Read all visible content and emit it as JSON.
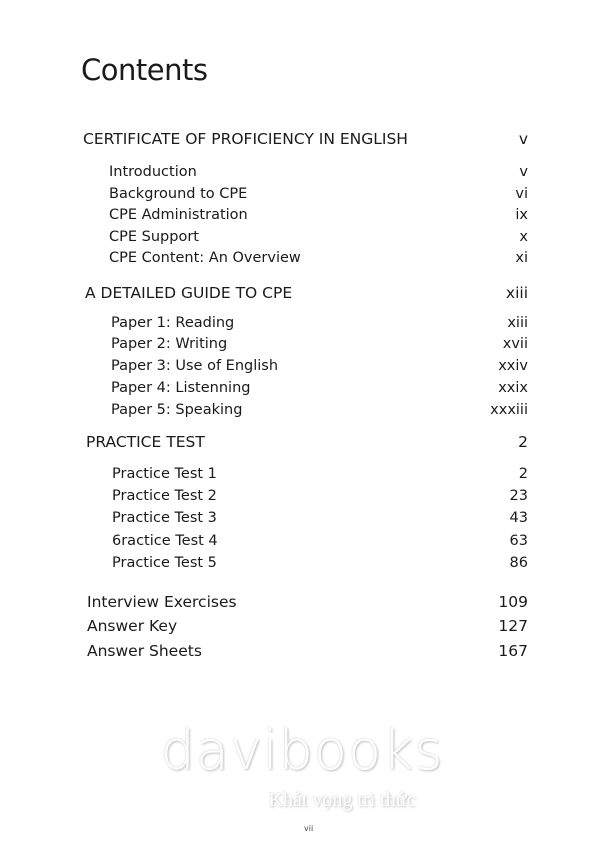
{
  "title": "Contents",
  "sections": [
    {
      "label": "CERTIFICATE OF PROFICIENCY IN ENGLISH",
      "page": "v",
      "items": [
        {
          "label": "Introduction",
          "page": "v"
        },
        {
          "label": "Background to CPE",
          "page": "vi"
        },
        {
          "label": "CPE Administration",
          "page": "ix"
        },
        {
          "label": "CPE Support",
          "page": "x"
        },
        {
          "label": "CPE Content: An Overview",
          "page": "xi"
        }
      ]
    },
    {
      "label": "A DETAILED GUIDE TO CPE",
      "page": "xiii",
      "items": [
        {
          "label": "Paper 1: Reading",
          "page": "xiii"
        },
        {
          "label": "Paper 2: Writing",
          "page": "xvii"
        },
        {
          "label": "Paper 3: Use of English",
          "page": "xxiv"
        },
        {
          "label": "Paper 4: Listenning",
          "page": "xxix"
        },
        {
          "label": "Paper 5: Speaking",
          "page": "xxxiii"
        }
      ]
    },
    {
      "label": "PRACTICE TEST",
      "page": "2",
      "items": [
        {
          "label": "Practice Test 1",
          "page": "2"
        },
        {
          "label": "Practice Test 2",
          "page": "23"
        },
        {
          "label": "Practice Test 3",
          "page": "43"
        },
        {
          "label": "6ractice Test 4",
          "page": "63"
        },
        {
          "label": "Practice Test 5",
          "page": "86"
        }
      ]
    }
  ],
  "top_entries": [
    {
      "label": "Interview Exercises",
      "page": "109"
    },
    {
      "label": "Answer Key",
      "page": "127"
    },
    {
      "label": "Answer Sheets",
      "page": "167"
    }
  ],
  "page_number": "vii",
  "watermark": {
    "brand": "davibooks",
    "tagline": "Khát vọng tri thức"
  }
}
